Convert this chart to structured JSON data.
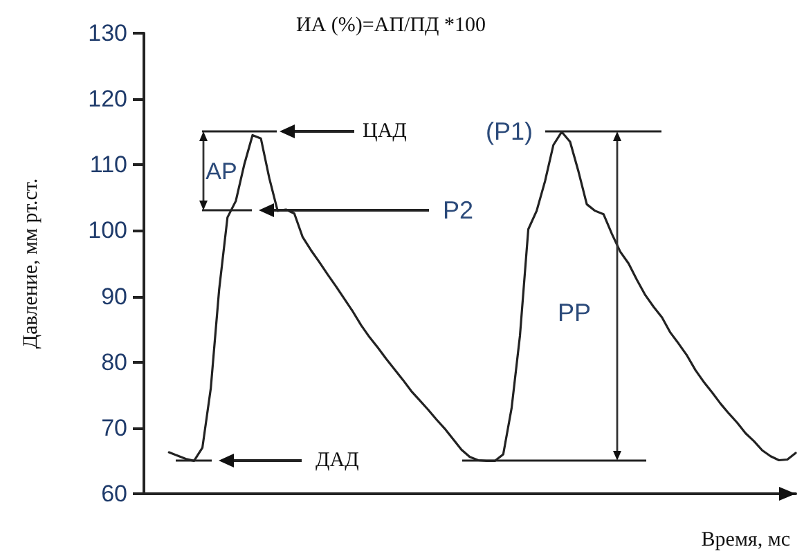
{
  "chart_data": {
    "type": "line",
    "title": "ИА (%)=АП/ПД *100",
    "xlabel": "Время, мс",
    "ylabel": "Давление, мм рт.ст.",
    "categories": [
      null,
      null,
      null,
      null,
      null,
      null,
      null,
      null,
      null,
      null,
      null,
      null,
      null,
      null,
      null,
      null,
      null,
      null,
      null,
      null,
      null,
      null,
      null,
      null,
      null,
      null,
      null,
      null,
      null,
      null,
      null,
      null,
      null,
      null,
      null,
      null,
      null,
      null,
      null,
      null,
      null,
      null,
      null,
      null,
      null,
      null,
      null,
      null,
      null,
      null,
      null,
      null,
      null,
      null,
      null,
      null,
      null,
      null,
      null,
      null,
      null,
      null,
      null,
      null,
      null,
      null,
      null,
      null,
      null,
      null,
      null,
      null,
      null,
      null,
      null,
      null,
      null,
      null,
      null
    ],
    "series": [
      {
        "color": "#222222",
        "values": [
          null,
          null,
          null,
          66.3,
          65.8,
          65.3,
          65.0,
          67,
          76,
          91,
          102,
          104.5,
          110,
          114.5,
          114,
          108,
          103,
          103.2,
          102.6,
          99,
          97,
          95.2,
          93.3,
          91.5,
          89.6,
          87.7,
          85.6,
          83.8,
          82.2,
          80.5,
          78.9,
          77.3,
          75.6,
          74.2,
          72.8,
          71.3,
          69.9,
          68.3,
          66.7,
          65.6,
          65.1,
          65,
          65,
          66,
          73,
          84,
          100.2,
          103,
          107.5,
          113,
          115,
          113.5,
          109,
          104,
          103,
          102.5,
          99.5,
          96.8,
          95,
          92.5,
          90.2,
          88.4,
          86.8,
          84.5,
          82.8,
          81,
          78.8,
          77,
          75.4,
          73.7,
          72.2,
          70.8,
          69.2,
          68,
          66.6,
          65.7,
          65.1,
          65.2,
          66.2
        ]
      }
    ],
    "ylim": [
      60,
      130
    ],
    "yticks": [
      60,
      70,
      80,
      90,
      100,
      110,
      120,
      130
    ],
    "grid": false,
    "line_style": "solid",
    "tick_labels": "y",
    "annotations": [
      "ЦАД",
      "(P1)",
      "P2",
      "ДАД",
      "AP",
      "PP"
    ]
  }
}
